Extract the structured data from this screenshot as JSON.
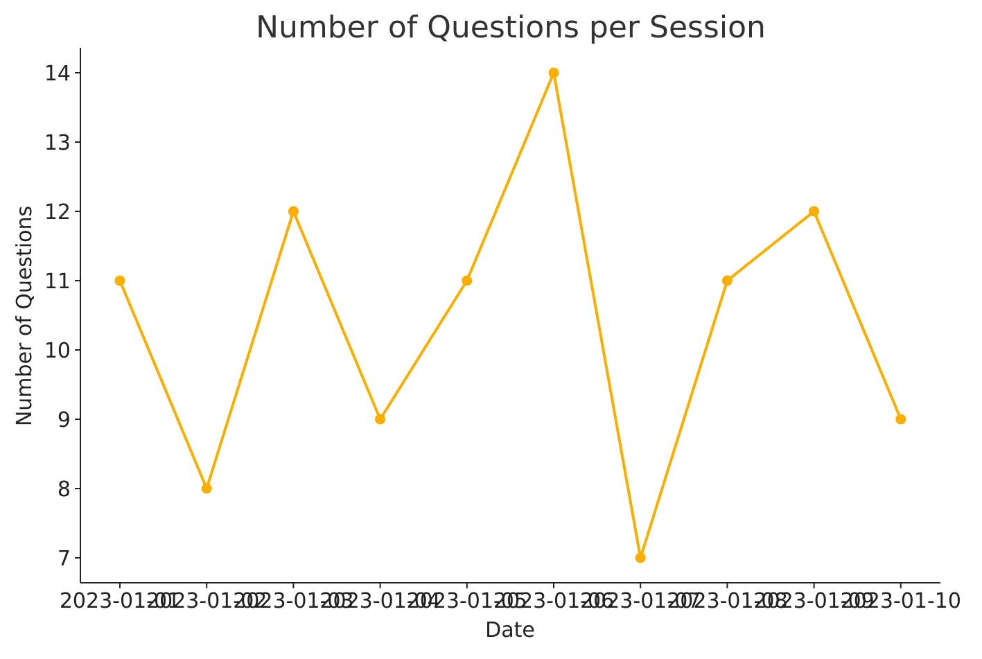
{
  "chart_data": {
    "type": "line",
    "title": "Number of Questions per Session",
    "xlabel": "Date",
    "ylabel": "Number of Questions",
    "categories": [
      "2023-01-01",
      "2023-01-02",
      "2023-01-03",
      "2023-01-04",
      "2023-01-05",
      "2023-01-06",
      "2023-01-07",
      "2023-01-08",
      "2023-01-09",
      "2023-01-10"
    ],
    "series": [
      {
        "values": [
          11,
          8,
          12,
          9,
          11,
          14,
          7,
          11,
          12,
          9
        ],
        "color": "#f9ae00",
        "marker": "circle"
      }
    ],
    "yticks": [
      7,
      8,
      9,
      10,
      11,
      12,
      13,
      14
    ],
    "ylim": [
      6.65,
      14.35
    ],
    "grid": false,
    "legend": "none"
  }
}
